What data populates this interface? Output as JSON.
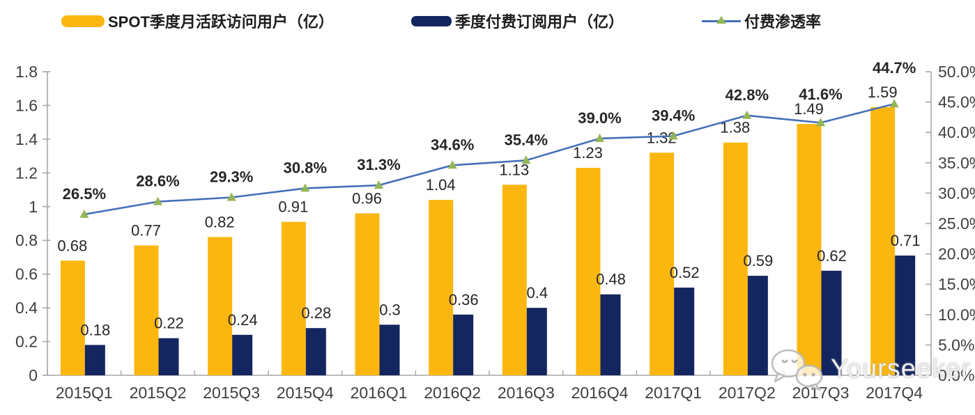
{
  "legend": [
    {
      "label": "SPOT季度月活跃访问用户（亿）",
      "type": "bar",
      "color": "#FBB70F"
    },
    {
      "label": "季度付费订阅用户（亿）",
      "type": "bar",
      "color": "#14265F"
    },
    {
      "label": "付费渗透率",
      "type": "line",
      "color": "#4470B8",
      "marker_color": "#94B655"
    }
  ],
  "chart_data": {
    "type": "bar",
    "subtype": "bar+line combo, dual axis",
    "categories": [
      "2015Q1",
      "2015Q2",
      "2015Q3",
      "2015Q4",
      "2016Q1",
      "2016Q2",
      "2016Q3",
      "2016Q4",
      "2017Q1",
      "2017Q2",
      "2017Q3",
      "2017Q4"
    ],
    "series": [
      {
        "name": "SPOT季度月活跃访问用户（亿）",
        "type": "bar",
        "axis": "left",
        "color": "#FBB70F",
        "values": [
          0.68,
          0.77,
          0.82,
          0.91,
          0.96,
          1.04,
          1.13,
          1.23,
          1.32,
          1.38,
          1.49,
          1.59
        ],
        "labels": [
          "0.68",
          "0.77",
          "0.82",
          "0.91",
          "0.96",
          "1.04",
          "1.13",
          "1.23",
          "1.32",
          "1.38",
          "1.49",
          "1.59"
        ]
      },
      {
        "name": "季度付费订阅用户（亿）",
        "type": "bar",
        "axis": "left",
        "color": "#14265F",
        "values": [
          0.18,
          0.22,
          0.24,
          0.28,
          0.3,
          0.36,
          0.4,
          0.48,
          0.52,
          0.59,
          0.62,
          0.71
        ],
        "labels": [
          "0.18",
          "0.22",
          "0.24",
          "0.28",
          "0.3",
          "0.36",
          "0.4",
          "0.48",
          "0.52",
          "0.59",
          "0.62",
          "0.71"
        ]
      },
      {
        "name": "付费渗透率",
        "type": "line",
        "axis": "right",
        "color": "#4470B8",
        "marker": "triangle",
        "marker_color": "#94B655",
        "values": [
          26.5,
          28.6,
          29.3,
          30.8,
          31.3,
          34.6,
          35.4,
          39.0,
          39.4,
          42.8,
          41.6,
          44.7
        ],
        "labels": [
          "26.5%",
          "28.6%",
          "29.3%",
          "30.8%",
          "31.3%",
          "34.6%",
          "35.4%",
          "39.0%",
          "39.4%",
          "42.8%",
          "41.6%",
          "44.7%"
        ]
      }
    ],
    "left_axis": {
      "min": 0,
      "max": 1.8,
      "ticks": [
        "0",
        "0.2",
        "0.4",
        "0.6",
        "0.8",
        "1",
        "1.2",
        "1.4",
        "1.6",
        "1.8"
      ]
    },
    "right_axis": {
      "min": 0,
      "max": 50,
      "ticks": [
        "0.0%",
        "5.0%",
        "10.0%",
        "15.0%",
        "20.0%",
        "25.0%",
        "30.0%",
        "35.0%",
        "40.0%",
        "45.0%",
        "50.0%"
      ]
    },
    "grid": false,
    "legend_position": "top",
    "title": ""
  },
  "watermark": {
    "text": "Yourseeker",
    "icon": "wechat-icon"
  }
}
